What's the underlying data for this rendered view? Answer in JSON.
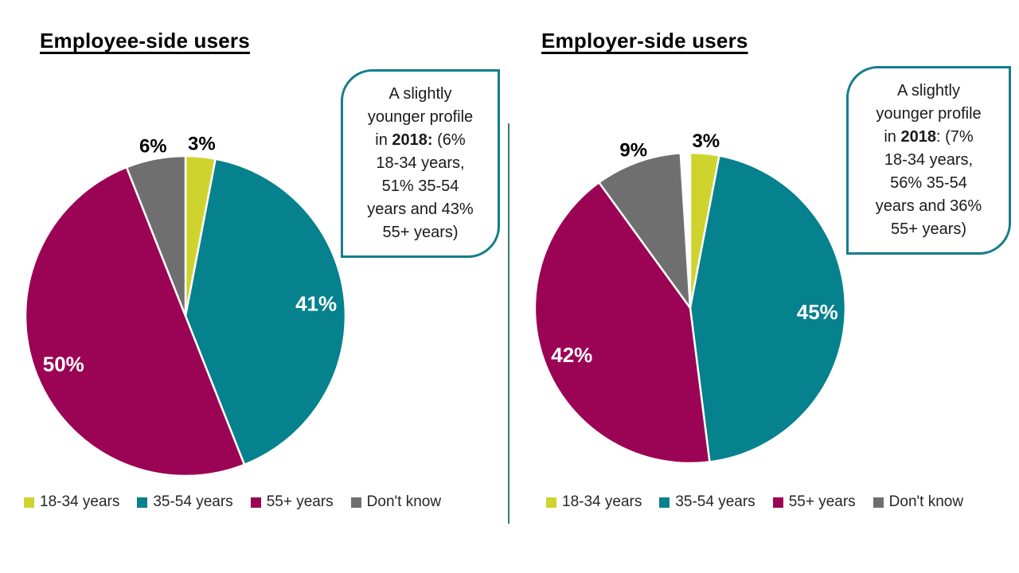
{
  "colors": {
    "accent_teal_border": "#147E8B",
    "divider_line": "#3C7A6E",
    "background": "#FFFFFF",
    "outside_label_text": "#000000",
    "inside_label_text": "#FFFFFF"
  },
  "chart_data": [
    {
      "type": "pie",
      "title": "Employee-side users",
      "categories": [
        "18-34 years",
        "35-54 years",
        "55+ years",
        "Don't know"
      ],
      "values": [
        3,
        41,
        50,
        6
      ],
      "labels": [
        "3%",
        "41%",
        "50%",
        "6%"
      ],
      "colors": [
        "#CFD32E",
        "#06818E",
        "#9B0355",
        "#6F6F6F"
      ],
      "start_angle": "12 o'clock",
      "direction": "clockwise",
      "legend_position": "bottom",
      "annotation": {
        "before": "A slightly younger profile in ",
        "bold": "2018:",
        "after": " (6% 18-34 years, 51% 35-54 years and 43% 55+ years)"
      }
    },
    {
      "type": "pie",
      "title": "Employer-side users",
      "categories": [
        "18-34 years",
        "35-54 years",
        "55+ years",
        "Don't know"
      ],
      "values": [
        3,
        45,
        42,
        9
      ],
      "labels": [
        "3%",
        "45%",
        "42%",
        "9%"
      ],
      "colors": [
        "#CFD32E",
        "#06818E",
        "#9B0355",
        "#6F6F6F"
      ],
      "start_angle": "12 o'clock",
      "direction": "clockwise",
      "legend_position": "bottom",
      "annotation": {
        "before": "A slightly younger profile in ",
        "bold": "2018",
        "after": ": (7% 18-34 years, 56% 35-54 years and 36% 55+ years)"
      }
    }
  ]
}
